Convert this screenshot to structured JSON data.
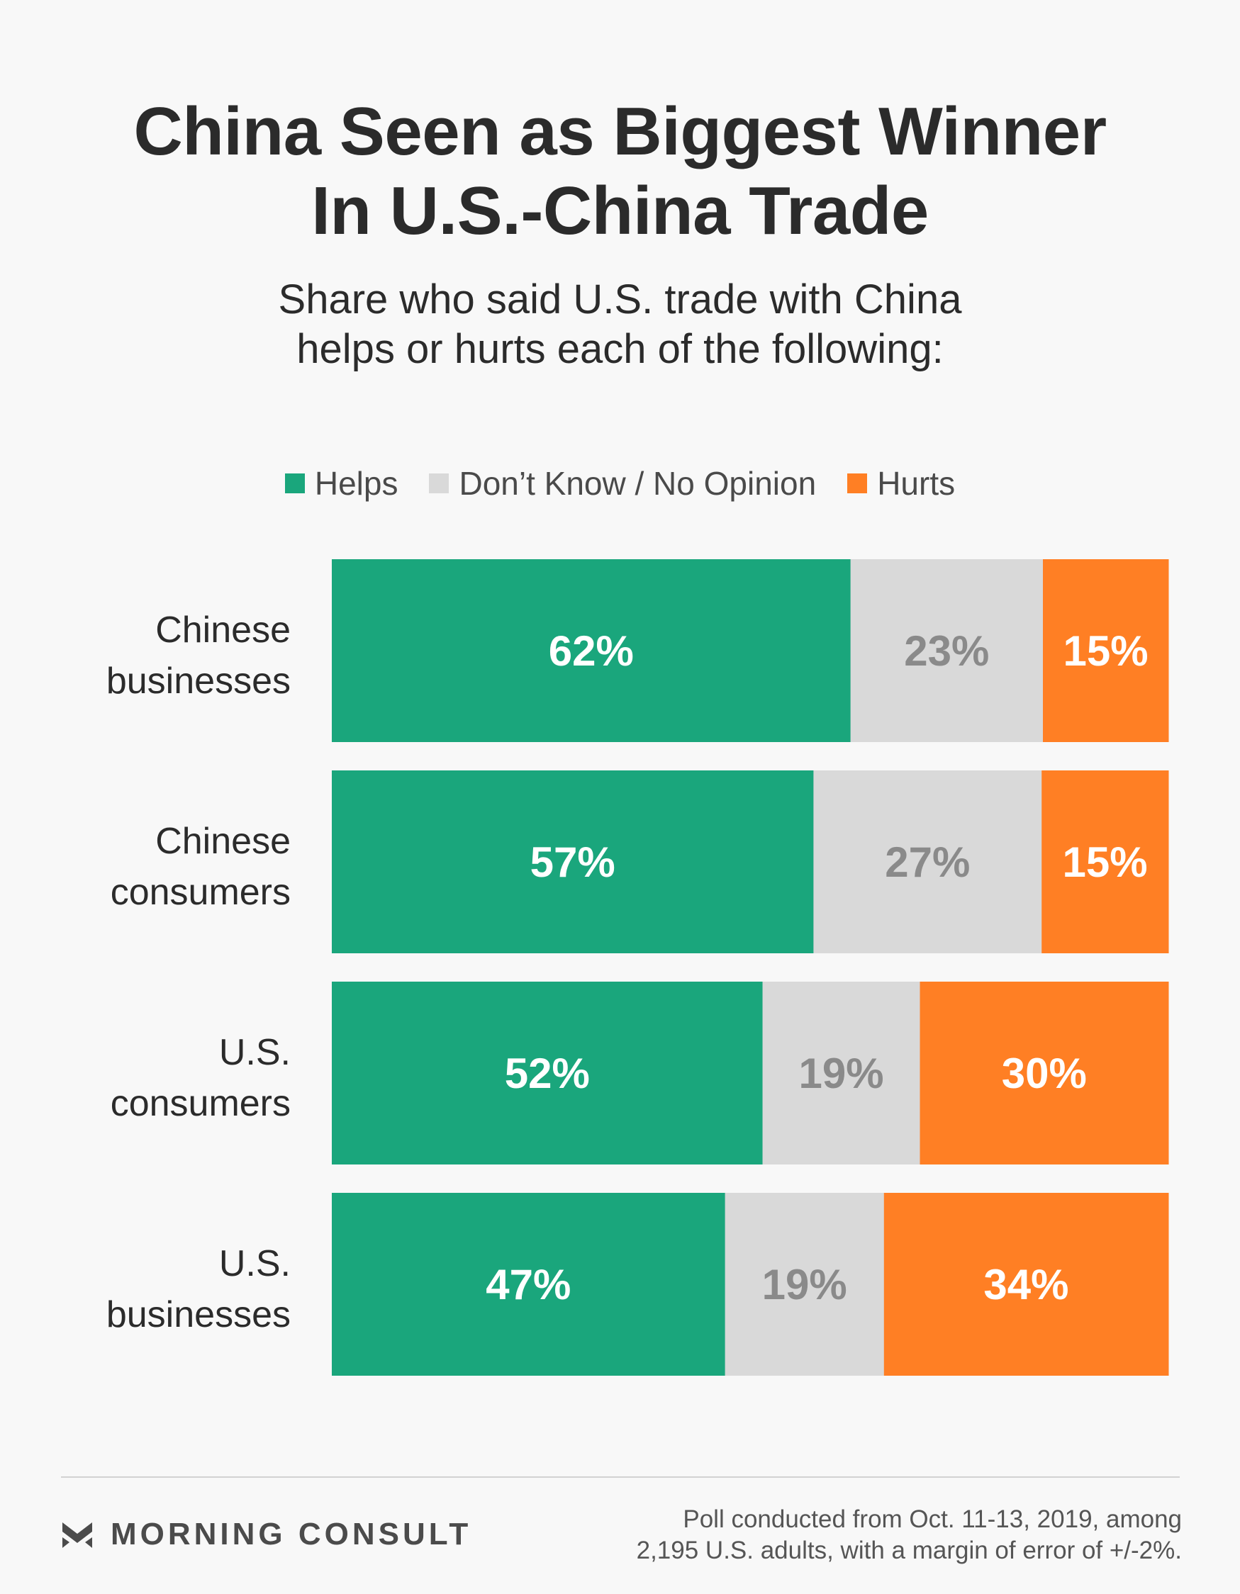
{
  "chart_data": {
    "type": "bar",
    "orientation": "horizontal",
    "stacked": true,
    "title_lines": [
      "China Seen as Biggest Winner",
      "In U.S.-China Trade"
    ],
    "subtitle_lines": [
      "Share who said U.S. trade with China",
      "helps or hurts each of the following:"
    ],
    "categories": [
      [
        "Chinese",
        "businesses"
      ],
      [
        "Chinese",
        "consumers"
      ],
      [
        "U.S.",
        "consumers"
      ],
      [
        "U.S.",
        "businesses"
      ]
    ],
    "series": [
      {
        "name": "Helps",
        "color": "#1aa67c",
        "label_color": "#ffffff",
        "values": [
          62,
          57,
          52,
          47
        ]
      },
      {
        "name": "Don't Know / No Opinion",
        "color": "#d9d9d9",
        "label_color": "#8a8a8a",
        "values": [
          23,
          27,
          19,
          19
        ]
      },
      {
        "name": "Hurts",
        "color": "#ff7f24",
        "label_color": "#ffffff",
        "values": [
          15,
          15,
          30,
          34
        ]
      }
    ],
    "value_suffix": "%",
    "legend_position": "top",
    "grid": false
  },
  "legend": {
    "items": [
      {
        "label": "Helps",
        "color": "#1aa67c"
      },
      {
        "label": "Don’t Know / No Opinion",
        "color": "#d9d9d9"
      },
      {
        "label": "Hurts",
        "color": "#ff7f24"
      }
    ]
  },
  "footer": {
    "brand": "MORNING CONSULT",
    "brand_icon": "morning-consult-logo-icon",
    "source_lines": [
      "Poll conducted from Oct. 11-13, 2019, among",
      "2,195 U.S. adults, with a margin of error of +/-2%."
    ]
  }
}
